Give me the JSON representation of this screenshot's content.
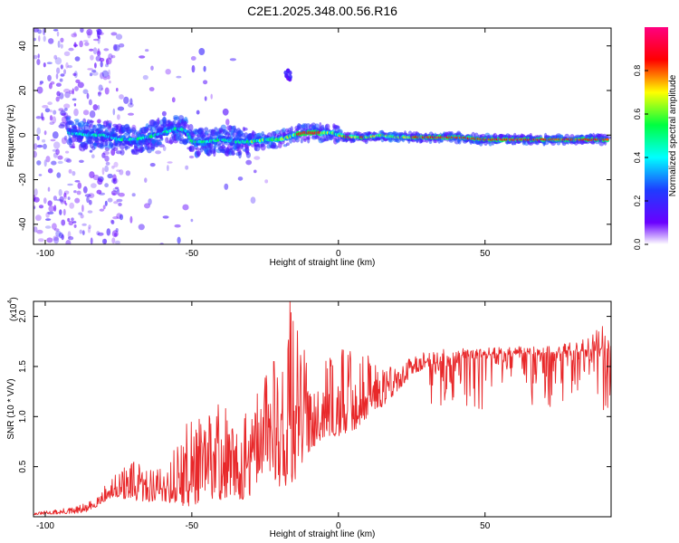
{
  "title": "C2E1.2025.348.00.56.R16",
  "chart_data": [
    {
      "type": "heatmap",
      "xlabel": "Height of straight line (km)",
      "ylabel": "Frequency (Hz)",
      "xlim": [
        -104,
        93
      ],
      "ylim": [
        -49,
        48
      ],
      "xticks": [
        -100,
        -50,
        0,
        50
      ],
      "xtick_labels": [
        "-100",
        "-50",
        "0",
        "50"
      ],
      "yticks": [
        -40,
        -20,
        0,
        20,
        40
      ],
      "ytick_labels": [
        "-40",
        "-20",
        "0",
        "20",
        "40"
      ],
      "colorbar": {
        "label": "Normalized spectral amplitude",
        "range": [
          0,
          1
        ],
        "ticks": [
          0,
          0.2,
          0.4,
          0.6,
          0.8
        ],
        "tick_labels": [
          "0.0",
          "0.2",
          "0.4",
          "0.6",
          "0.8"
        ],
        "colors": [
          "#ffffff",
          "#6a00ff",
          "#1e3cff",
          "#00ffff",
          "#00ff40",
          "#ffff00",
          "#ff0000",
          "#ff0080"
        ]
      },
      "ridge": {
        "x": [
          -92,
          -85,
          -80,
          -75,
          -70,
          -65,
          -60,
          -55,
          -52,
          -50,
          -45,
          -40,
          -35,
          -30,
          -25,
          -20,
          -15,
          -12,
          -8,
          -5,
          -2,
          0,
          3,
          5,
          8,
          10,
          15,
          20,
          30,
          40,
          50,
          60,
          70,
          80,
          92
        ],
        "freq": [
          1,
          0,
          0,
          -2,
          -2,
          -1,
          1,
          3,
          2,
          -3,
          -3,
          -2,
          -3,
          -3,
          -2,
          -2,
          0,
          1,
          1,
          1,
          1,
          0,
          -1,
          -1,
          -1,
          -1,
          0,
          -1,
          -1,
          -1,
          -2,
          -2,
          -2,
          -2,
          -2
        ]
      },
      "blob_annotation": {
        "x": -17,
        "freq": 27
      }
    },
    {
      "type": "line",
      "xlabel": "Height of straight line (km)",
      "ylabel": "SNR (10 * V/V)",
      "yscale_label": "(x10",
      "yscale_exponent": "4",
      "xlim": [
        -104,
        93
      ],
      "ylim": [
        0,
        2.15
      ],
      "xticks": [
        -100,
        -50,
        0,
        50
      ],
      "xtick_labels": [
        "-100",
        "-50",
        "0",
        "50"
      ],
      "yticks": [
        0.5,
        1.0,
        1.5,
        2.0
      ],
      "ytick_labels": [
        "0.5",
        "1.0",
        "1.5",
        "2.0"
      ],
      "color": "#e8282a",
      "envelope": {
        "x": [
          -104,
          -90,
          -85,
          -80,
          -75,
          -70,
          -65,
          -60,
          -55,
          -50,
          -45,
          -40,
          -35,
          -30,
          -25,
          -20,
          -16,
          -10,
          -5,
          0,
          5,
          10,
          15,
          20,
          25,
          30,
          35,
          40,
          45,
          50,
          55,
          60,
          65,
          70,
          75,
          80,
          85,
          90,
          93
        ],
        "base": [
          0.02,
          0.03,
          0.05,
          0.15,
          0.2,
          0.15,
          0.15,
          0.15,
          0.12,
          0.1,
          0.2,
          0.15,
          0.15,
          0.2,
          0.5,
          0.3,
          0.3,
          0.65,
          0.8,
          0.8,
          0.85,
          1.0,
          1.1,
          1.25,
          1.4,
          1.5,
          1.55,
          1.6,
          1.6,
          1.62,
          1.63,
          1.63,
          1.64,
          1.64,
          1.65,
          1.66,
          1.67,
          1.68,
          1.7
        ],
        "peak": [
          0.04,
          0.1,
          0.15,
          0.3,
          0.45,
          0.55,
          0.5,
          0.55,
          0.75,
          1.05,
          1.0,
          1.3,
          0.9,
          1.1,
          1.5,
          1.6,
          2.15,
          1.55,
          1.55,
          1.7,
          1.6,
          1.65,
          1.6,
          1.5,
          1.6,
          1.65,
          1.67,
          1.68,
          1.68,
          1.69,
          1.7,
          1.7,
          1.7,
          1.7,
          1.72,
          1.75,
          1.8,
          1.9,
          1.75
        ]
      },
      "notable_peaks": [
        {
          "x": -16.5,
          "y": 2.15
        },
        {
          "x": -22,
          "y": 1.55
        },
        {
          "x": 4,
          "y": 1.65
        },
        {
          "x": 90,
          "y": 1.9
        }
      ]
    }
  ]
}
